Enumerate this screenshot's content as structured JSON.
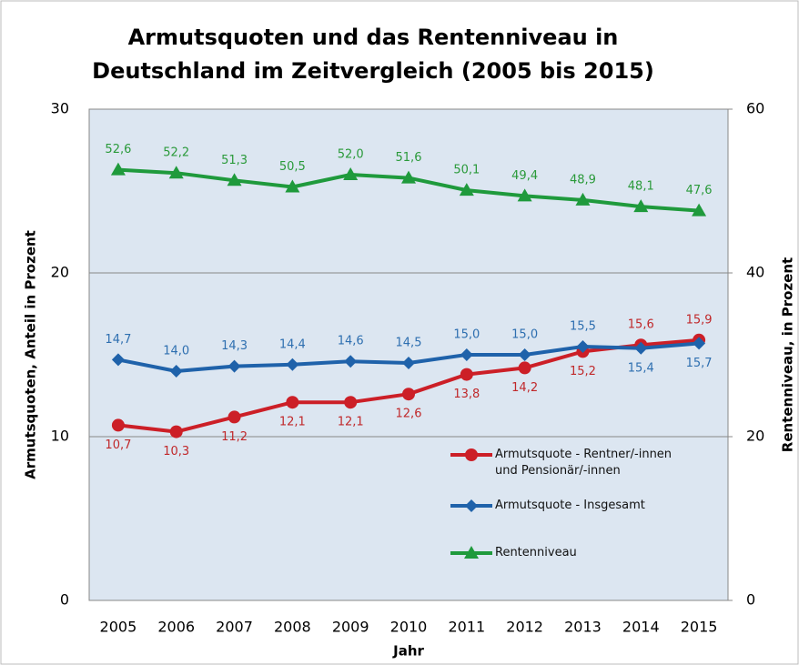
{
  "chart_data": {
    "type": "line",
    "title": [
      "Armutsquoten und das Rentenniveau in",
      "Deutschland im Zeitvergleich (2005 bis 2015)"
    ],
    "xlabel": "Jahr",
    "ylabel": "Armutsquoten, Anteil in Prozent",
    "y2label": "Rentenniveau, in Prozent",
    "categories": [
      "2005",
      "2006",
      "2007",
      "2008",
      "2009",
      "2010",
      "2011",
      "2012",
      "2013",
      "2014",
      "2015"
    ],
    "ylim": [
      0,
      30
    ],
    "yticks": [
      0,
      10,
      20,
      30
    ],
    "y2lim": [
      0,
      60
    ],
    "y2ticks": [
      0,
      20,
      40,
      60
    ],
    "grid": true,
    "series": [
      {
        "name": "Armutsquote - Rentner/-innen und Pensionär/-innen",
        "color": "#cc1f27",
        "marker": "circle",
        "values": [
          10.7,
          10.3,
          11.2,
          12.1,
          12.1,
          12.6,
          13.8,
          14.2,
          15.2,
          15.6,
          15.9
        ],
        "value_labels": [
          "10,7",
          "10,3",
          "11,2",
          "12,1",
          "12,1",
          "12,6",
          "13,8",
          "14,2",
          "15,2",
          "15,6",
          "15,9"
        ]
      },
      {
        "name": "Armutsquote - Insgesamt",
        "color": "#1f62aa",
        "marker": "diamond",
        "values": [
          14.7,
          14.0,
          14.3,
          14.4,
          14.6,
          14.5,
          15.0,
          15.0,
          15.5,
          15.4,
          15.7
        ],
        "value_labels": [
          "14,7",
          "14,0",
          "14,3",
          "14,4",
          "14,6",
          "14,5",
          "15,0",
          "15,0",
          "15,5",
          "15,4",
          "15,7"
        ]
      },
      {
        "name": "Rentenniveau",
        "color": "#1f9a3c",
        "marker": "triangle",
        "axis": "y2",
        "values": [
          52.6,
          52.2,
          51.3,
          50.5,
          52.0,
          51.6,
          50.1,
          49.4,
          48.9,
          48.1,
          47.6
        ],
        "value_labels": [
          "52,6",
          "52,2",
          "51,3",
          "50,5",
          "52,0",
          "51,6",
          "50,1",
          "49,4",
          "48,9",
          "48,1",
          "47,6"
        ]
      }
    ]
  }
}
